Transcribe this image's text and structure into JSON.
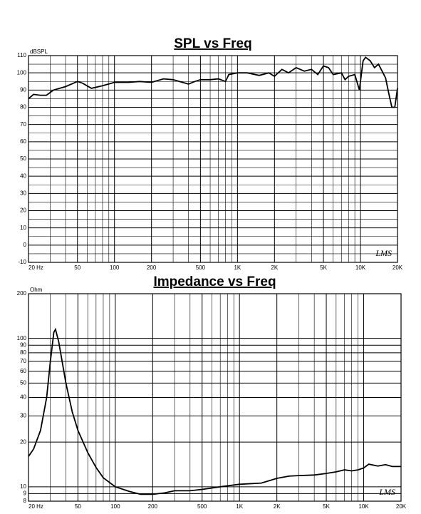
{
  "chart_data": [
    {
      "type": "line",
      "title": "SPL vs Freq",
      "y_label": "dBSPL",
      "watermark": "LMS",
      "color": "#000000",
      "log_x": true,
      "log_y": false,
      "grid": true,
      "xlim": [
        20,
        20000
      ],
      "xticks": [
        {
          "value": 20,
          "label": "20 Hz"
        },
        50,
        100,
        200,
        500,
        {
          "value": 1000,
          "label": "1K"
        },
        {
          "value": 2000,
          "label": "2K"
        },
        {
          "value": 5000,
          "label": "5K"
        },
        {
          "value": 10000,
          "label": "10K"
        },
        {
          "value": 20000,
          "label": "20K"
        }
      ],
      "minor_xticks": [
        30,
        40,
        60,
        70,
        80,
        90,
        300,
        400,
        600,
        700,
        800,
        900,
        3000,
        4000,
        6000,
        7000,
        8000,
        9000
      ],
      "ylim": [
        -10,
        110
      ],
      "yticks": [
        -10,
        0,
        10,
        20,
        30,
        40,
        50,
        60,
        70,
        80,
        90,
        100,
        110
      ],
      "minor_yticks": [
        -5,
        5,
        15,
        25,
        35,
        45,
        55,
        65,
        75,
        85,
        95,
        105
      ],
      "x": [
        20,
        22,
        25,
        28,
        32,
        40,
        50,
        55,
        65,
        80,
        100,
        130,
        160,
        200,
        250,
        300,
        400,
        450,
        500,
        600,
        700,
        800,
        850,
        1000,
        1200,
        1500,
        1800,
        2000,
        2300,
        2600,
        3000,
        3500,
        4000,
        4500,
        5000,
        5500,
        6000,
        7000,
        7500,
        8000,
        9000,
        9800,
        10500,
        11000,
        12000,
        13000,
        14000,
        15000,
        16000,
        17000,
        18000,
        19000,
        20000
      ],
      "values": [
        85,
        87.5,
        87,
        87,
        90,
        92,
        95,
        94,
        91,
        92.5,
        94.5,
        94.5,
        95,
        94.5,
        96.5,
        96,
        93.5,
        95,
        96,
        96,
        96.5,
        95,
        99,
        100,
        100,
        98.5,
        100,
        98,
        102,
        100,
        103,
        101,
        102,
        99,
        104,
        103,
        99,
        100,
        96,
        98,
        99,
        90,
        107,
        109,
        107,
        103,
        105,
        101,
        97,
        88,
        80,
        80,
        91
      ]
    },
    {
      "type": "line",
      "title": "Impedance vs Freq",
      "y_label": "Ohm",
      "watermark": "LMS",
      "color": "#000000",
      "log_x": true,
      "log_y": true,
      "grid": true,
      "xlim": [
        20,
        20000
      ],
      "xticks": [
        {
          "value": 20,
          "label": "20 Hz"
        },
        50,
        100,
        200,
        500,
        {
          "value": 1000,
          "label": "1K"
        },
        {
          "value": 2000,
          "label": "2K"
        },
        {
          "value": 5000,
          "label": "5K"
        },
        {
          "value": 10000,
          "label": "10K"
        },
        {
          "value": 20000,
          "label": "20K"
        }
      ],
      "minor_xticks": [
        30,
        40,
        60,
        70,
        80,
        90,
        300,
        400,
        600,
        700,
        800,
        900,
        3000,
        4000,
        6000,
        7000,
        8000,
        9000
      ],
      "ylim": [
        8,
        200
      ],
      "yticks": [
        8,
        9,
        10,
        20,
        30,
        40,
        50,
        60,
        70,
        80,
        90,
        100,
        200
      ],
      "minor_yticks": [],
      "x": [
        20,
        22,
        25,
        28,
        30,
        32,
        33,
        35,
        40,
        45,
        50,
        60,
        70,
        80,
        100,
        130,
        160,
        200,
        250,
        300,
        400,
        500,
        700,
        1000,
        1500,
        2000,
        2500,
        3000,
        4000,
        5000,
        6000,
        7000,
        8000,
        9000,
        10000,
        11000,
        13000,
        15000,
        17000,
        20000
      ],
      "values": [
        16,
        18,
        24,
        40,
        70,
        110,
        115,
        95,
        50,
        32,
        24,
        17,
        13.5,
        11.5,
        10,
        9.3,
        8.9,
        8.9,
        9.1,
        9.4,
        9.4,
        9.6,
        10,
        10.4,
        10.6,
        11.4,
        11.8,
        11.9,
        12.0,
        12.3,
        12.6,
        13.0,
        12.8,
        13.0,
        13.4,
        14.2,
        13.8,
        14.1,
        13.7,
        13.7
      ]
    }
  ]
}
